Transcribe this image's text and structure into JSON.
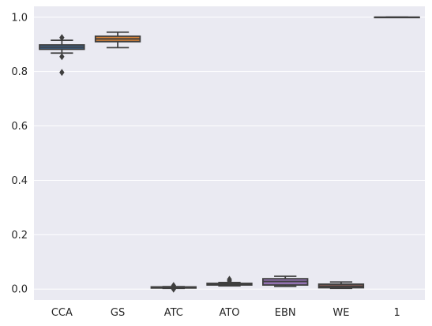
{
  "chart_data": {
    "type": "box",
    "title": "",
    "xlabel": "",
    "ylabel": "",
    "ylim": [
      -0.04,
      1.04
    ],
    "yticks": [
      0.0,
      0.2,
      0.4,
      0.6,
      0.8,
      1.0
    ],
    "ytick_labels": [
      "0.0",
      "0.2",
      "0.4",
      "0.6",
      "0.8",
      "1.0"
    ],
    "grid": true,
    "background_color": "#eaeaf2",
    "edge_color": "#3f3f3f",
    "categories": [
      "CCA",
      "GS",
      "ATC",
      "ATO",
      "EBN",
      "WE",
      "1"
    ],
    "boxes": [
      {
        "name": "CCA",
        "color": "#3b6a9c",
        "whislo": 0.868,
        "q1": 0.882,
        "med": 0.89,
        "q3": 0.898,
        "whishi": 0.915,
        "fliers": [
          0.925,
          0.855,
          0.797
        ]
      },
      {
        "name": "GS",
        "color": "#d0803a",
        "whislo": 0.888,
        "q1": 0.91,
        "med": 0.92,
        "q3": 0.93,
        "whishi": 0.945,
        "fliers": []
      },
      {
        "name": "ATC",
        "color": "#3a923a",
        "whislo": 0.003,
        "q1": 0.004,
        "med": 0.006,
        "q3": 0.008,
        "whishi": 0.009,
        "fliers": [
          0.013,
          0.0
        ]
      },
      {
        "name": "ATO",
        "color": "#c03d3e",
        "whislo": 0.012,
        "q1": 0.015,
        "med": 0.018,
        "q3": 0.021,
        "whishi": 0.024,
        "fliers": [
          0.03,
          0.036
        ]
      },
      {
        "name": "EBN",
        "color": "#9372b2",
        "whislo": 0.01,
        "q1": 0.015,
        "med": 0.028,
        "q3": 0.038,
        "whishi": 0.047,
        "fliers": []
      },
      {
        "name": "WE",
        "color": "#845b53",
        "whislo": 0.003,
        "q1": 0.005,
        "med": 0.01,
        "q3": 0.018,
        "whishi": 0.026,
        "fliers": []
      },
      {
        "name": "1",
        "color": "#d684bd",
        "whislo": 1.0,
        "q1": 1.0,
        "med": 1.0,
        "q3": 1.0,
        "whishi": 1.0,
        "fliers": []
      }
    ]
  }
}
